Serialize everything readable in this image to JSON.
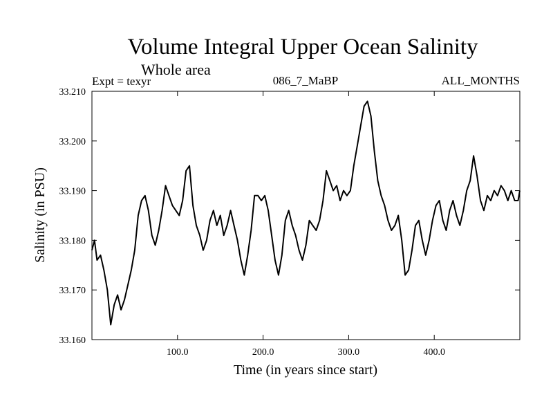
{
  "header": {
    "title": "Volume Integral Upper Ocean Salinity",
    "subtitle": "Whole area",
    "expt": "Expt = texyr",
    "run_id": "086_7_MaBP",
    "months": "ALL_MONTHS"
  },
  "colors": {
    "line": "#000000",
    "axes": "#000000",
    "background": "#ffffff"
  },
  "chart_data": {
    "type": "line",
    "title": "Volume Integral Upper Ocean Salinity",
    "subtitle": "Whole area",
    "xlabel": "Time (in years since start)",
    "ylabel": "Salinity (in PSU)",
    "xlim": [
      0,
      500
    ],
    "ylim": [
      33.16,
      33.21
    ],
    "xticks": [
      100,
      200,
      300,
      400
    ],
    "xtick_labels": [
      "100.0",
      "200.0",
      "300.0",
      "400.0"
    ],
    "yticks": [
      33.16,
      33.17,
      33.18,
      33.19,
      33.2,
      33.21
    ],
    "ytick_labels": [
      "33.160",
      "33.170",
      "33.180",
      "33.190",
      "33.200",
      "33.210"
    ],
    "grid": false,
    "series": [
      {
        "x": [
          0,
          3,
          6,
          10,
          14,
          18,
          22,
          26,
          30,
          34,
          38,
          42,
          46,
          50,
          54,
          58,
          62,
          66,
          70,
          74,
          78,
          82,
          86,
          90,
          94,
          98,
          102,
          106,
          110,
          114,
          118,
          122,
          126,
          130,
          134,
          138,
          142,
          146,
          150,
          154,
          158,
          162,
          166,
          170,
          174,
          178,
          182,
          186,
          190,
          194,
          198,
          202,
          206,
          210,
          214,
          218,
          222,
          226,
          230,
          234,
          238,
          242,
          246,
          250,
          254,
          258,
          262,
          266,
          270,
          274,
          278,
          282,
          286,
          290,
          294,
          298,
          302,
          306,
          310,
          314,
          318,
          322,
          326,
          330,
          334,
          338,
          342,
          346,
          350,
          354,
          358,
          362,
          366,
          370,
          374,
          378,
          382,
          386,
          390,
          394,
          398,
          402,
          406,
          410,
          414,
          418,
          422,
          426,
          430,
          434,
          438,
          442,
          446,
          450,
          454,
          458,
          462,
          466,
          470,
          474,
          478,
          482,
          486,
          490,
          494,
          498,
          500
        ],
        "y": [
          33.178,
          33.18,
          33.176,
          33.177,
          33.174,
          33.17,
          33.163,
          33.167,
          33.169,
          33.166,
          33.168,
          33.171,
          33.174,
          33.178,
          33.185,
          33.188,
          33.189,
          33.186,
          33.181,
          33.179,
          33.182,
          33.186,
          33.191,
          33.189,
          33.187,
          33.186,
          33.185,
          33.188,
          33.194,
          33.195,
          33.187,
          33.183,
          33.181,
          33.178,
          33.18,
          33.184,
          33.186,
          33.183,
          33.185,
          33.181,
          33.183,
          33.186,
          33.183,
          33.18,
          33.176,
          33.173,
          33.177,
          33.182,
          33.189,
          33.189,
          33.188,
          33.189,
          33.186,
          33.181,
          33.176,
          33.173,
          33.177,
          33.184,
          33.186,
          33.183,
          33.181,
          33.178,
          33.176,
          33.179,
          33.184,
          33.183,
          33.182,
          33.184,
          33.188,
          33.194,
          33.192,
          33.19,
          33.191,
          33.188,
          33.19,
          33.189,
          33.19,
          33.195,
          33.199,
          33.203,
          33.207,
          33.208,
          33.205,
          33.198,
          33.192,
          33.189,
          33.187,
          33.184,
          33.182,
          33.183,
          33.185,
          33.18,
          33.173,
          33.174,
          33.178,
          33.183,
          33.184,
          33.18,
          33.177,
          33.18,
          33.184,
          33.187,
          33.188,
          33.184,
          33.182,
          33.186,
          33.188,
          33.185,
          33.183,
          33.186,
          33.19,
          33.192,
          33.197,
          33.193,
          33.188,
          33.186,
          33.189,
          33.188,
          33.19,
          33.189,
          33.191,
          33.19,
          33.188,
          33.19,
          33.188,
          33.188,
          33.19
        ]
      }
    ]
  }
}
